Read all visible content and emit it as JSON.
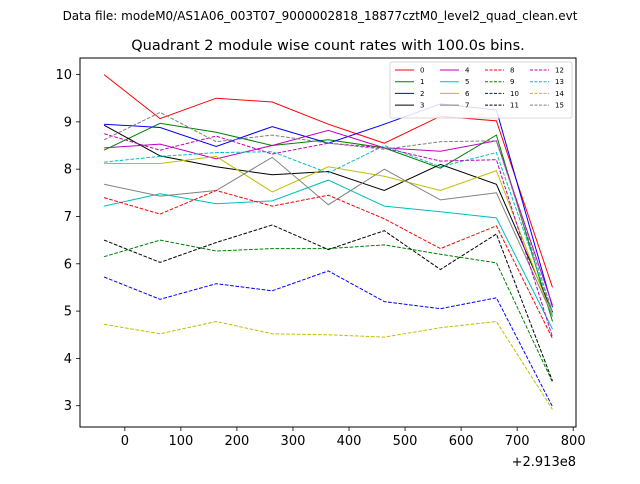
{
  "suptitle": "Data file: modeM0/AS1A06_003T07_9000002818_18877cztM0_level2_quad_clean.evt",
  "chart_data": {
    "type": "line",
    "title": "Quadrant 2 module wise count rates with 100.0s bins.",
    "xlabel": "",
    "ylabel": "",
    "x_offset_label": "+2.913e8",
    "x": [
      -37,
      63,
      163,
      263,
      363,
      463,
      563,
      663,
      763
    ],
    "xlim": [
      -80,
      805
    ],
    "ylim": [
      2.55,
      10.35
    ],
    "x_ticks": [
      0,
      100,
      200,
      300,
      400,
      500,
      600,
      700,
      800
    ],
    "y_ticks": [
      3,
      4,
      5,
      6,
      7,
      8,
      9,
      10
    ],
    "grid": false,
    "legend": {
      "placement": "top-right",
      "columns": 4
    },
    "series": [
      {
        "name": "0",
        "color": "#ff0000",
        "dash": "solid",
        "values": [
          10.0,
          9.07,
          9.5,
          9.42,
          8.95,
          8.55,
          9.12,
          9.02,
          5.5
        ]
      },
      {
        "name": "1",
        "color": "#008000",
        "dash": "solid",
        "values": [
          8.4,
          8.97,
          8.78,
          8.5,
          8.62,
          8.45,
          8.02,
          8.72,
          4.78
        ]
      },
      {
        "name": "2",
        "color": "#0000ff",
        "dash": "solid",
        "values": [
          8.95,
          8.88,
          8.48,
          8.9,
          8.55,
          8.95,
          9.38,
          9.25,
          5.08
        ]
      },
      {
        "name": "3",
        "color": "#000000",
        "dash": "solid",
        "values": [
          8.93,
          8.28,
          8.05,
          7.88,
          7.95,
          7.55,
          8.1,
          7.68,
          4.98
        ]
      },
      {
        "name": "4",
        "color": "#bf00bf",
        "dash": "solid",
        "values": [
          8.45,
          8.53,
          8.22,
          8.5,
          8.82,
          8.45,
          8.38,
          8.6,
          5.12
        ]
      },
      {
        "name": "5",
        "color": "#00bfbf",
        "dash": "solid",
        "values": [
          7.22,
          7.48,
          7.27,
          7.33,
          7.77,
          7.22,
          7.1,
          6.97,
          4.62
        ]
      },
      {
        "name": "6",
        "color": "#bfbf00",
        "dash": "solid",
        "values": [
          8.12,
          8.12,
          8.27,
          7.52,
          8.05,
          7.85,
          7.55,
          7.97,
          4.88
        ]
      },
      {
        "name": "7",
        "color": "#808080",
        "dash": "solid",
        "values": [
          7.68,
          7.43,
          7.55,
          8.25,
          7.25,
          8.0,
          7.35,
          7.5,
          4.9
        ]
      },
      {
        "name": "8",
        "color": "#ff0000",
        "dash": "dashed",
        "values": [
          7.4,
          7.05,
          7.55,
          7.22,
          7.45,
          6.95,
          6.32,
          6.8,
          4.42
        ]
      },
      {
        "name": "9",
        "color": "#008000",
        "dash": "dashed",
        "values": [
          6.15,
          6.5,
          6.27,
          6.32,
          6.32,
          6.4,
          6.2,
          6.02,
          3.5
        ]
      },
      {
        "name": "10",
        "color": "#0000ff",
        "dash": "dashed",
        "values": [
          5.72,
          5.25,
          5.58,
          5.43,
          5.85,
          5.2,
          5.05,
          5.28,
          2.98
        ]
      },
      {
        "name": "11",
        "color": "#000000",
        "dash": "dashed",
        "values": [
          6.5,
          6.03,
          6.45,
          6.82,
          6.3,
          6.7,
          5.88,
          6.63,
          3.52
        ]
      },
      {
        "name": "12",
        "color": "#bf00bf",
        "dash": "dashed",
        "values": [
          8.75,
          8.4,
          8.7,
          8.32,
          8.55,
          8.45,
          8.17,
          8.2,
          4.45
        ]
      },
      {
        "name": "13",
        "color": "#00bfbf",
        "dash": "dashed",
        "values": [
          8.15,
          8.27,
          8.35,
          8.37,
          7.92,
          8.5,
          8.05,
          8.35,
          4.95
        ]
      },
      {
        "name": "14",
        "color": "#bfbf00",
        "dash": "dashed",
        "values": [
          4.72,
          4.52,
          4.78,
          4.52,
          4.5,
          4.45,
          4.65,
          4.78,
          2.92
        ]
      },
      {
        "name": "15",
        "color": "#808080",
        "dash": "dashed",
        "values": [
          8.62,
          9.2,
          8.58,
          8.72,
          8.55,
          8.42,
          8.58,
          8.6,
          4.98
        ]
      }
    ]
  }
}
